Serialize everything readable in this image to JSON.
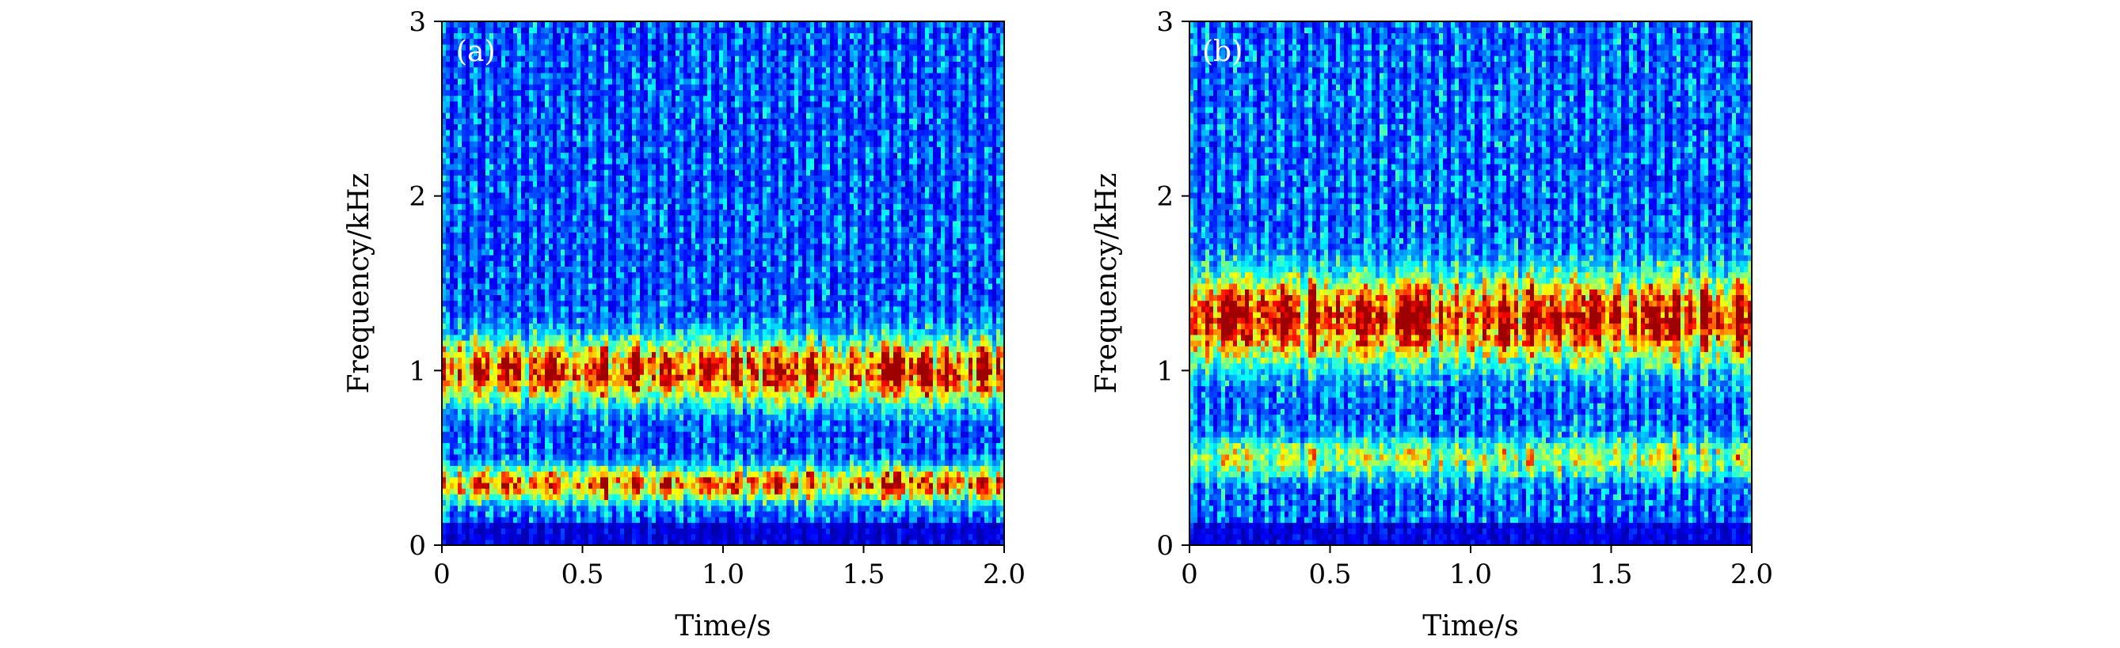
{
  "figure": {
    "description_free": true
  },
  "colors": {
    "background": "#ffffff",
    "axis": "#000000",
    "panel_label": "#ffffff",
    "colormap": [
      "#00008f",
      "#0000ff",
      "#0080ff",
      "#00ffff",
      "#80ff80",
      "#ffff00",
      "#ff8000",
      "#ff0000",
      "#800000"
    ]
  },
  "chart_data": [
    {
      "type": "heatmap",
      "panel_label": "(a)",
      "title": "",
      "xlabel": "Time/s",
      "ylabel": "Frequency/kHz",
      "xlim": [
        0,
        2.0
      ],
      "ylim": [
        0,
        3
      ],
      "x_ticks": [
        0,
        0.5,
        1.0,
        1.5,
        2.0
      ],
      "x_tick_labels": [
        "0",
        "0.5",
        "1.0",
        "1.5",
        "2.0"
      ],
      "y_ticks": [
        0,
        1,
        2,
        3
      ],
      "y_tick_labels": [
        "0",
        "1",
        "2",
        "3"
      ],
      "colormap": "jet",
      "bands": [
        {
          "center_khz": 1.0,
          "width_khz": 0.22,
          "peak_intensity": 0.92
        },
        {
          "center_khz": 0.35,
          "width_khz": 0.12,
          "peak_intensity": 0.8
        }
      ],
      "background_intensity": 0.28,
      "bright_times_s": [
        0.13,
        0.24,
        0.39,
        0.57,
        0.69,
        0.81,
        0.93,
        1.04,
        1.19,
        1.31,
        1.58,
        1.62,
        1.72,
        1.8,
        1.92
      ]
    },
    {
      "type": "heatmap",
      "panel_label": "(b)",
      "title": "",
      "xlabel": "Time/s",
      "ylabel": "Frequency/kHz",
      "xlim": [
        0,
        2.0
      ],
      "ylim": [
        0,
        3
      ],
      "x_ticks": [
        0,
        0.5,
        1.0,
        1.5,
        2.0
      ],
      "x_tick_labels": [
        "0",
        "0.5",
        "1.0",
        "1.5",
        "2.0"
      ],
      "y_ticks": [
        0,
        1,
        2,
        3
      ],
      "y_tick_labels": [
        "0",
        "1",
        "2",
        "3"
      ],
      "colormap": "jet",
      "bands": [
        {
          "center_khz": 1.3,
          "width_khz": 0.3,
          "peak_intensity": 0.97
        },
        {
          "center_khz": 0.5,
          "width_khz": 0.14,
          "peak_intensity": 0.45
        }
      ],
      "background_intensity": 0.3,
      "bright_times_s": [
        0.13,
        0.2,
        0.35,
        0.44,
        0.62,
        0.77,
        0.82,
        1.12,
        1.22,
        1.3,
        1.38,
        1.44,
        1.65,
        1.72,
        1.84,
        1.96
      ]
    }
  ]
}
